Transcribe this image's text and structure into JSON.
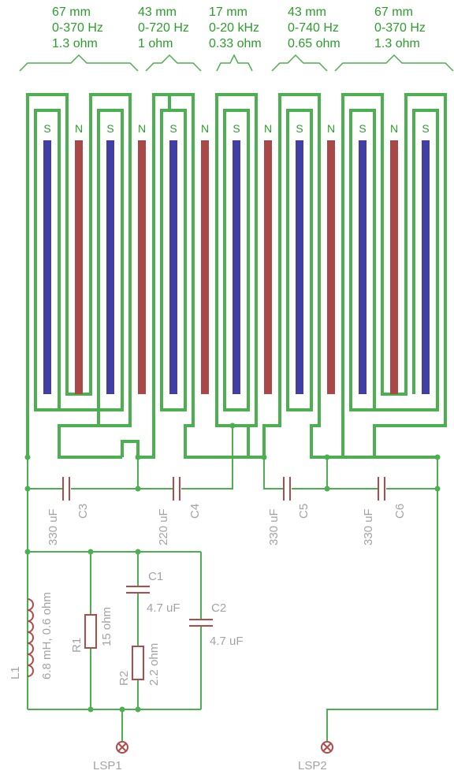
{
  "sections": [
    {
      "size": "67 mm",
      "range": "0-370 Hz",
      "impedance": "1.3 ohm"
    },
    {
      "size": "43 mm",
      "range": "0-720 Hz",
      "impedance": "1 ohm"
    },
    {
      "size": "17 mm",
      "range": "0-20 kHz",
      "impedance": "0.33 ohm"
    },
    {
      "size": "43 mm",
      "range": "0-740 Hz",
      "impedance": "0.65 ohm"
    },
    {
      "size": "67 mm",
      "range": "0-370 Hz",
      "impedance": "1.3 ohm"
    }
  ],
  "poles": [
    "S",
    "N",
    "S",
    "N",
    "S",
    "N",
    "S",
    "N",
    "S",
    "N",
    "S",
    "N",
    "S"
  ],
  "colors": {
    "trace": "#4caf50",
    "magnet_south": "#3f3fa6",
    "magnet_north": "#a84848",
    "component": "#b34a4a",
    "label": "#a3a3a3",
    "header": "#2a9e2a"
  },
  "components": {
    "c3": {
      "name": "C3",
      "value": "330 uF"
    },
    "c4": {
      "name": "C4",
      "value": "220 uF"
    },
    "c5": {
      "name": "C5",
      "value": "330 uF"
    },
    "c6": {
      "name": "C6",
      "value": "330 uF"
    },
    "c1": {
      "name": "C1",
      "value": "4.7 uF"
    },
    "c2": {
      "name": "C2",
      "value": "4.7 uF"
    },
    "r1": {
      "name": "R1",
      "value": "15 ohm"
    },
    "r2": {
      "name": "R2",
      "value": "2.2 ohm"
    },
    "l1": {
      "name": "L1",
      "value": "6.8 mH, 0.6 ohm"
    }
  },
  "terminals": {
    "lsp1": "LSP1",
    "lsp2": "LSP2"
  }
}
